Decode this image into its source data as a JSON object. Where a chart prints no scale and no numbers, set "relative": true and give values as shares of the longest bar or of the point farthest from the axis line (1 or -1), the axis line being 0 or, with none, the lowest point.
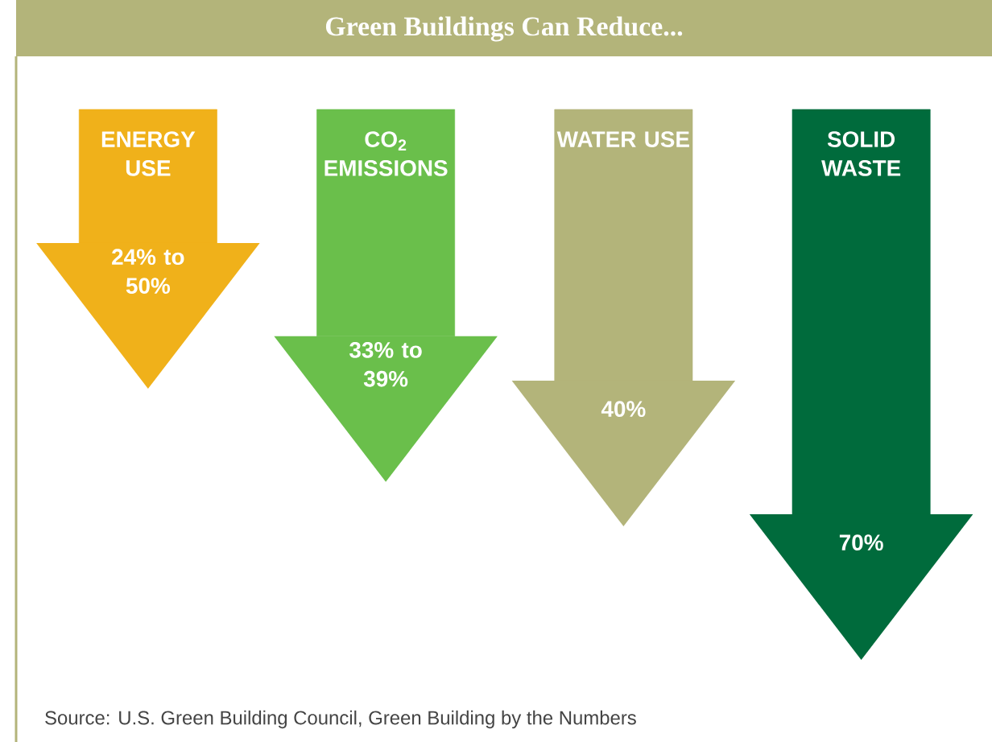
{
  "chart_data": {
    "type": "bar",
    "title": "Green Buildings Can Reduce...",
    "relative": true,
    "categories": [
      "ENERGY USE",
      "CO$_{2}$ EMISSIONS",
      "WATER USE",
      "SOLID WASTE"
    ],
    "values": [
      -0.33,
      -0.56,
      -0.67,
      -1
    ],
    "colors": [
      "#f0b11a",
      "#6abf4b",
      "#b3b47a",
      "#006b3c"
    ],
    "annotations": [
      "24% to 50%",
      "33% to 39%",
      "40%",
      "70%",
      "Source: U.S. Green Building Council, Green Building by the Numbers"
    ]
  }
}
